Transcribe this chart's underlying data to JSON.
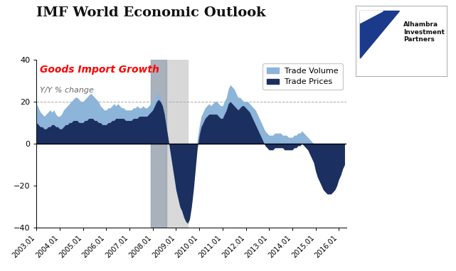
{
  "title": "IMF World Economic Outlook",
  "subtitle": "Goods Import Growth",
  "subtitle2": "Y/Y % change",
  "legend_labels": [
    "Trade Volume",
    "Trade Prices"
  ],
  "trade_volume_color": "#8DB4D9",
  "trade_prices_color": "#1B3060",
  "recession_light_color": "#D8D8D8",
  "recession_dark_color": "#8A9AAA",
  "ylim": [
    -40,
    40
  ],
  "yticks": [
    -40,
    -20,
    0,
    20,
    40
  ],
  "recession_light_start": 2007.917,
  "recession_light_end": 2009.5,
  "recession_dark_start": 2007.917,
  "recession_dark_end": 2008.583,
  "dates": [
    2003.0,
    2003.083,
    2003.167,
    2003.25,
    2003.333,
    2003.417,
    2003.5,
    2003.583,
    2003.667,
    2003.75,
    2003.833,
    2003.917,
    2004.0,
    2004.083,
    2004.167,
    2004.25,
    2004.333,
    2004.417,
    2004.5,
    2004.583,
    2004.667,
    2004.75,
    2004.833,
    2004.917,
    2005.0,
    2005.083,
    2005.167,
    2005.25,
    2005.333,
    2005.417,
    2005.5,
    2005.583,
    2005.667,
    2005.75,
    2005.833,
    2005.917,
    2006.0,
    2006.083,
    2006.167,
    2006.25,
    2006.333,
    2006.417,
    2006.5,
    2006.583,
    2006.667,
    2006.75,
    2006.833,
    2006.917,
    2007.0,
    2007.083,
    2007.167,
    2007.25,
    2007.333,
    2007.417,
    2007.5,
    2007.583,
    2007.667,
    2007.75,
    2007.833,
    2007.917,
    2008.0,
    2008.083,
    2008.167,
    2008.25,
    2008.333,
    2008.417,
    2008.5,
    2008.583,
    2008.667,
    2008.75,
    2008.833,
    2008.917,
    2009.0,
    2009.083,
    2009.167,
    2009.25,
    2009.333,
    2009.417,
    2009.5,
    2009.583,
    2009.667,
    2009.75,
    2009.833,
    2009.917,
    2010.0,
    2010.083,
    2010.167,
    2010.25,
    2010.333,
    2010.417,
    2010.5,
    2010.583,
    2010.667,
    2010.75,
    2010.833,
    2010.917,
    2011.0,
    2011.083,
    2011.167,
    2011.25,
    2011.333,
    2011.417,
    2011.5,
    2011.583,
    2011.667,
    2011.75,
    2011.833,
    2011.917,
    2012.0,
    2012.083,
    2012.167,
    2012.25,
    2012.333,
    2012.417,
    2012.5,
    2012.583,
    2012.667,
    2012.75,
    2012.833,
    2012.917,
    2013.0,
    2013.083,
    2013.167,
    2013.25,
    2013.333,
    2013.417,
    2013.5,
    2013.583,
    2013.667,
    2013.75,
    2013.833,
    2013.917,
    2014.0,
    2014.083,
    2014.167,
    2014.25,
    2014.333,
    2014.417,
    2014.5,
    2014.583,
    2014.667,
    2014.75,
    2014.833,
    2014.917,
    2015.0,
    2015.083,
    2015.167,
    2015.25,
    2015.333,
    2015.417,
    2015.5,
    2015.583,
    2015.667,
    2015.75,
    2015.833,
    2015.917,
    2016.0,
    2016.083,
    2016.167,
    2016.25
  ],
  "trade_volume": [
    19,
    17,
    15,
    14,
    13,
    14,
    15,
    16,
    15,
    16,
    14,
    13,
    13,
    14,
    16,
    17,
    18,
    19,
    20,
    21,
    22,
    22,
    21,
    20,
    20,
    21,
    22,
    23,
    24,
    23,
    22,
    21,
    20,
    18,
    17,
    16,
    16,
    17,
    17,
    18,
    19,
    18,
    19,
    18,
    17,
    17,
    16,
    16,
    16,
    16,
    17,
    17,
    18,
    17,
    17,
    18,
    17,
    17,
    18,
    19,
    20,
    22,
    23,
    24,
    22,
    18,
    14,
    8,
    2,
    -4,
    -10,
    -16,
    -22,
    -26,
    -30,
    -32,
    -34,
    -35,
    -34,
    -30,
    -24,
    -16,
    -8,
    2,
    8,
    13,
    15,
    17,
    18,
    19,
    18,
    19,
    20,
    20,
    19,
    18,
    18,
    20,
    22,
    26,
    28,
    27,
    26,
    24,
    22,
    22,
    21,
    20,
    20,
    20,
    19,
    18,
    17,
    16,
    14,
    12,
    10,
    8,
    6,
    5,
    4,
    4,
    4,
    5,
    5,
    5,
    5,
    4,
    4,
    4,
    3,
    3,
    3,
    4,
    4,
    5,
    5,
    6,
    5,
    4,
    3,
    2,
    1,
    0,
    -3,
    -6,
    -9,
    -11,
    -13,
    -14,
    -15,
    -16,
    -17,
    -17,
    -16,
    -15,
    -12,
    -10,
    -8,
    -7
  ],
  "trade_prices": [
    10,
    9,
    8,
    8,
    7,
    7,
    8,
    8,
    9,
    9,
    8,
    8,
    7,
    7,
    8,
    9,
    9,
    10,
    10,
    11,
    11,
    11,
    10,
    10,
    10,
    11,
    11,
    12,
    12,
    12,
    11,
    11,
    10,
    10,
    9,
    9,
    9,
    10,
    10,
    11,
    11,
    12,
    12,
    12,
    12,
    12,
    11,
    11,
    11,
    11,
    12,
    12,
    12,
    13,
    13,
    13,
    13,
    13,
    14,
    15,
    16,
    18,
    20,
    21,
    20,
    18,
    14,
    8,
    2,
    -4,
    -10,
    -16,
    -22,
    -26,
    -30,
    -32,
    -35,
    -37,
    -38,
    -36,
    -30,
    -22,
    -12,
    -2,
    4,
    8,
    10,
    12,
    13,
    14,
    14,
    14,
    14,
    14,
    13,
    12,
    12,
    14,
    16,
    19,
    20,
    19,
    18,
    17,
    16,
    17,
    18,
    18,
    17,
    16,
    15,
    13,
    11,
    9,
    7,
    5,
    3,
    1,
    -1,
    -2,
    -3,
    -3,
    -3,
    -2,
    -2,
    -2,
    -2,
    -2,
    -3,
    -3,
    -3,
    -3,
    -3,
    -2,
    -2,
    -1,
    -1,
    0,
    -1,
    -2,
    -3,
    -5,
    -7,
    -9,
    -13,
    -16,
    -18,
    -20,
    -22,
    -23,
    -24,
    -24,
    -24,
    -23,
    -22,
    -20,
    -17,
    -15,
    -12,
    -10
  ],
  "xtick_labels": [
    "2003.01",
    "2004.01",
    "2005.01",
    "2006.01",
    "2007.01",
    "2008.01",
    "2009.01",
    "2010.01",
    "2011.01",
    "2012.01",
    "2013.01",
    "2014.01",
    "2015.01",
    "2016.01"
  ],
  "xtick_positions": [
    2003.0,
    2004.0,
    2005.0,
    2006.0,
    2007.0,
    2008.0,
    2009.0,
    2010.0,
    2011.0,
    2012.0,
    2013.0,
    2014.0,
    2015.0,
    2016.0
  ],
  "background_color": "#FFFFFF",
  "grid_color": "#AAAAAA",
  "zero_line_color": "#000000",
  "title_fontsize": 14,
  "subtitle_fontsize": 10,
  "subtitle2_fontsize": 8,
  "logo_text": "Alhambra\nInvestment\nPartners",
  "logo_triangle_color": "#1B3A8C"
}
